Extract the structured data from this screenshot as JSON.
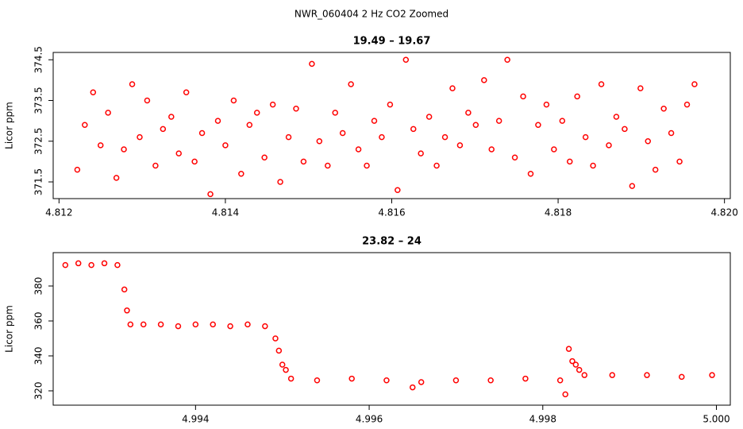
{
  "title": "NWR_060404  2 Hz CO2 Zoomed",
  "chart_data": [
    {
      "type": "scatter",
      "title": "19.49 – 19.67",
      "ylabel": "Licor ppm",
      "color": "#ff0000",
      "xlim": [
        4.81193,
        4.82007
      ],
      "ylim": [
        371.09,
        374.68
      ],
      "xticks": [
        4.812,
        4.814,
        4.816,
        4.818,
        {
          "value": 4.82,
          "label": "4.820"
        }
      ],
      "yticks": [
        371.5,
        372.5,
        373.5,
        374.5
      ],
      "x": [
        4.81222,
        4.81231,
        4.81241,
        4.8125,
        4.81259,
        4.81269,
        4.81278,
        4.81288,
        4.81297,
        4.81306,
        4.81316,
        4.81325,
        4.81335,
        4.81344,
        4.81353,
        4.81363,
        4.81372,
        4.81382,
        4.81391,
        4.814,
        4.8141,
        4.81419,
        4.81429,
        4.81438,
        4.81447,
        4.81457,
        4.81466,
        4.81476,
        4.81485,
        4.81494,
        4.81504,
        4.81513,
        4.81523,
        4.81532,
        4.81541,
        4.81551,
        4.8156,
        4.8157,
        4.81579,
        4.81588,
        4.81598,
        4.81607,
        4.81617,
        4.81626,
        4.81635,
        4.81645,
        4.81654,
        4.81664,
        4.81673,
        4.81682,
        4.81692,
        4.81701,
        4.81711,
        4.8172,
        4.81729,
        4.81739,
        4.81748,
        4.81758,
        4.81767,
        4.81776,
        4.81786,
        4.81795,
        4.81805,
        4.81814,
        4.81823,
        4.81833,
        4.81842,
        4.81852,
        4.81861,
        4.8187,
        4.8188,
        4.81889,
        4.81899,
        4.81908,
        4.81917,
        4.81927,
        4.81936,
        4.81946,
        4.81955,
        4.81964
      ],
      "values": [
        371.8,
        372.9,
        373.7,
        372.4,
        373.2,
        371.6,
        372.3,
        373.9,
        372.6,
        373.5,
        371.9,
        372.8,
        373.1,
        372.2,
        373.7,
        372.0,
        372.7,
        371.2,
        373.0,
        372.4,
        373.5,
        371.7,
        372.9,
        373.2,
        372.1,
        373.4,
        371.5,
        372.6,
        373.3,
        372.0,
        374.4,
        372.5,
        371.9,
        373.2,
        372.7,
        373.9,
        372.3,
        371.9,
        373.0,
        372.6,
        373.4,
        371.3,
        374.5,
        372.8,
        372.2,
        373.1,
        371.9,
        372.6,
        373.8,
        372.4,
        373.2,
        372.9,
        374.0,
        372.3,
        373.0,
        374.5,
        372.1,
        373.6,
        371.7,
        372.9,
        373.4,
        372.3,
        373.0,
        372.0,
        373.6,
        372.6,
        371.9,
        373.9,
        372.4,
        373.1,
        372.8,
        371.4,
        373.8,
        372.5,
        371.8,
        373.3,
        372.7,
        372.0,
        373.4,
        373.9
      ]
    },
    {
      "type": "scatter",
      "title": "23.82 – 24",
      "ylabel": "Licor ppm",
      "color": "#ff0000",
      "xlim": [
        4.99236,
        5.00016
      ],
      "ylim": [
        311.8,
        399.1
      ],
      "xticks": [
        4.994,
        4.996,
        4.998,
        {
          "value": 5,
          "label": "5.000"
        }
      ],
      "yticks": [
        320,
        340,
        360,
        380
      ],
      "x": [
        4.9925,
        4.99265,
        4.9928,
        4.99295,
        4.9931,
        4.99318,
        4.99321,
        4.99325,
        4.9934,
        4.9936,
        4.9938,
        4.994,
        4.9942,
        4.9944,
        4.9946,
        4.9948,
        4.99492,
        4.99496,
        4.995,
        4.99504,
        4.9951,
        4.9954,
        4.9958,
        4.9962,
        4.9965,
        4.9966,
        4.997,
        4.9974,
        4.9978,
        4.9982,
        4.99826,
        4.9983,
        4.99834,
        4.99838,
        4.99842,
        4.99848,
        4.9988,
        4.9992,
        4.9996,
        4.99995
      ],
      "values": [
        392,
        393,
        392,
        393,
        392,
        378,
        366,
        358,
        358,
        358,
        357,
        358,
        358,
        357,
        358,
        357,
        350,
        343,
        335,
        332,
        327,
        326,
        327,
        326,
        322,
        325,
        326,
        326,
        327,
        326,
        318,
        344,
        337,
        335,
        332,
        329,
        329,
        329,
        328,
        329
      ]
    }
  ]
}
